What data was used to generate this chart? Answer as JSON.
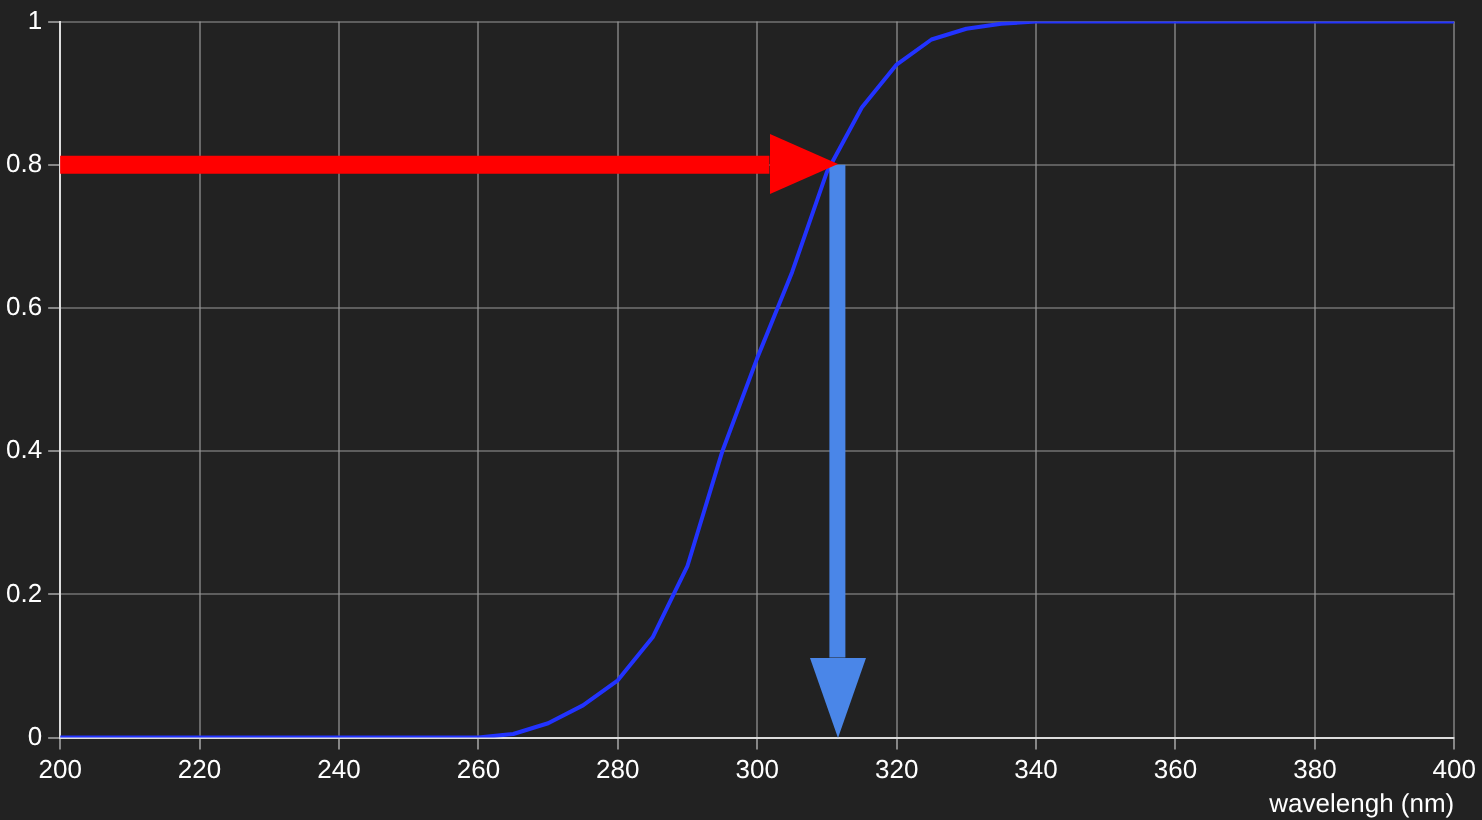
{
  "chart_data": {
    "type": "line",
    "xlabel": "wavelengh (nm)",
    "x": [
      200,
      220,
      240,
      255,
      260,
      265,
      270,
      275,
      280,
      285,
      288,
      290,
      295,
      300,
      305,
      310,
      315,
      320,
      325,
      330,
      335,
      340,
      350,
      400
    ],
    "series": [
      {
        "color": "#2233ff",
        "values": [
          0,
          0,
          0,
          0,
          0,
          0.005,
          0.02,
          0.045,
          0.08,
          0.14,
          0.2,
          0.24,
          0.4,
          0.53,
          0.65,
          0.79,
          0.88,
          0.94,
          0.975,
          0.99,
          0.997,
          1,
          1,
          1
        ]
      }
    ],
    "xlim": [
      200,
      400
    ],
    "xticks": [
      200,
      220,
      240,
      260,
      280,
      300,
      320,
      340,
      360,
      380,
      400
    ],
    "ylim": [
      0,
      1
    ],
    "yticks": [
      0,
      0.2,
      0.4,
      0.6,
      0.8,
      1
    ],
    "ref_lines": [
      {
        "axis": "y",
        "value": 0.8,
        "color": "#ff0000"
      },
      {
        "axis": "x",
        "value": 311.5,
        "color": "#4a86e8"
      }
    ],
    "grid": true,
    "legend": false,
    "marker": "none",
    "line_style": "solid"
  }
}
